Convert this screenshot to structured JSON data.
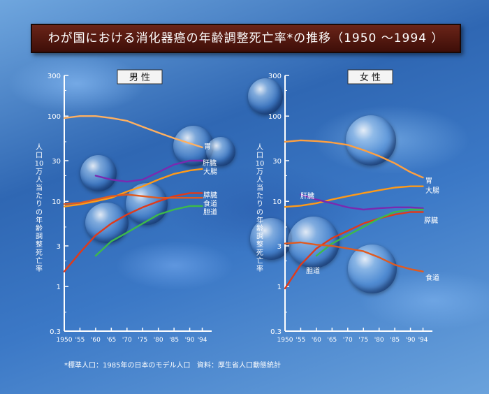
{
  "title": "わが国における消化器癌の年齢調整死亡率*の推移（1950 〜1994 ）",
  "footnote": "*標準人口：1985年の日本のモデル人口",
  "source": "資料：厚生省人口動態統計",
  "colors": {
    "male_stomach": "#ffb060",
    "liver": "#7a2ab0",
    "colon": "#ff9a18",
    "pancreas": "#e03a1a",
    "esophagus": "#e05a20",
    "biliary": "#3dba4a",
    "female_stomach": "#ffa040",
    "axis": "#ffffff"
  },
  "chart_data": [
    {
      "type": "line",
      "panel_label": "男 性",
      "ylabel": "人口10万人当たりの年齢調整死亡率",
      "y_scale": "log",
      "ylim": [
        0.3,
        300
      ],
      "yticks": [
        "300",
        "100",
        "30",
        "10",
        "3",
        "1",
        "0.3"
      ],
      "xlim": [
        1950,
        1997
      ],
      "xticks": [
        "1950",
        "'55",
        "'60",
        "'65",
        "'70",
        "'75",
        "'80",
        "'85",
        "'90",
        "'94"
      ],
      "grid": false,
      "series": [
        {
          "name": "胃",
          "color_key": "male_stomach",
          "x": [
            1950,
            1955,
            1960,
            1965,
            1970,
            1975,
            1980,
            1985,
            1990,
            1994
          ],
          "y": [
            95,
            100,
            100,
            95,
            88,
            75,
            64,
            55,
            48,
            43
          ]
        },
        {
          "name": "肝臓",
          "color_key": "liver",
          "x": [
            1960,
            1965,
            1970,
            1975,
            1980,
            1985,
            1990,
            1994
          ],
          "y": [
            20,
            18,
            17,
            18,
            22,
            27,
            30,
            30
          ]
        },
        {
          "name": "大腸",
          "color_key": "colon",
          "x": [
            1950,
            1955,
            1960,
            1965,
            1970,
            1975,
            1980,
            1985,
            1990,
            1994
          ],
          "y": [
            8.7,
            9.2,
            10,
            11,
            13,
            15,
            18,
            21,
            23,
            24
          ]
        },
        {
          "name": "膵臓",
          "color_key": "pancreas",
          "x": [
            1950,
            1955,
            1960,
            1965,
            1970,
            1975,
            1980,
            1985,
            1990,
            1994
          ],
          "y": [
            1.5,
            2.5,
            4,
            5.5,
            7,
            8.5,
            10,
            11.5,
            12.5,
            12.5
          ]
        },
        {
          "name": "食道",
          "color_key": "esophagus",
          "x": [
            1950,
            1955,
            1960,
            1965,
            1970,
            1975,
            1980,
            1985,
            1990,
            1994
          ],
          "y": [
            9.3,
            9.6,
            10.5,
            11.5,
            12,
            11.5,
            11,
            11,
            11,
            11
          ]
        },
        {
          "name": "胆道",
          "color_key": "biliary",
          "x": [
            1960,
            1965,
            1970,
            1975,
            1980,
            1985,
            1990,
            1994
          ],
          "y": [
            2.3,
            3.4,
            4.3,
            5.5,
            7,
            8,
            8.8,
            8.8
          ]
        }
      ]
    },
    {
      "type": "line",
      "panel_label": "女 性",
      "ylabel": "人口10万人当たりの年齢調整死亡率",
      "y_scale": "log",
      "ylim": [
        0.3,
        300
      ],
      "yticks": [
        "300",
        "100",
        "30",
        "10",
        "3",
        "1",
        "0.3"
      ],
      "xlim": [
        1950,
        1997
      ],
      "xticks": [
        "1950",
        "'55",
        "'60",
        "'65",
        "'70",
        "'75",
        "'80",
        "'85",
        "'90",
        "'94"
      ],
      "grid": false,
      "series": [
        {
          "name": "胃",
          "color_key": "female_stomach",
          "x": [
            1950,
            1955,
            1960,
            1965,
            1970,
            1975,
            1980,
            1985,
            1990,
            1994
          ],
          "y": [
            50,
            52,
            51,
            49,
            46,
            40,
            34,
            28,
            22,
            19
          ]
        },
        {
          "name": "大腸",
          "color_key": "colon",
          "x": [
            1950,
            1955,
            1960,
            1965,
            1970,
            1975,
            1980,
            1985,
            1990,
            1994
          ],
          "y": [
            8.6,
            8.9,
            9.5,
            10.5,
            11.5,
            12.5,
            13.5,
            14.5,
            15,
            15
          ]
        },
        {
          "name": "肝臓",
          "color_key": "liver",
          "x": [
            1955,
            1960,
            1965,
            1970,
            1975,
            1980,
            1985,
            1990,
            1994
          ],
          "y": [
            12,
            10.5,
            9.5,
            8.5,
            8,
            8.3,
            8.5,
            8.5,
            8.3
          ]
        },
        {
          "name": "膵臓",
          "color_key": "pancreas",
          "x": [
            1950,
            1955,
            1960,
            1965,
            1970,
            1975,
            1980,
            1985,
            1990,
            1994
          ],
          "y": [
            0.95,
            1.8,
            2.8,
            3.7,
            4.5,
            5.5,
            6.3,
            7,
            7.5,
            7.5
          ]
        },
        {
          "name": "胆道",
          "color_key": "biliary",
          "x": [
            1960,
            1965,
            1970,
            1975,
            1980,
            1985,
            1990,
            1994
          ],
          "y": [
            2.3,
            3.2,
            4,
            5,
            6.3,
            7.5,
            8,
            8
          ]
        },
        {
          "name": "食道",
          "color_key": "esophagus",
          "x": [
            1950,
            1955,
            1960,
            1965,
            1970,
            1975,
            1980,
            1985,
            1990,
            1994
          ],
          "y": [
            3.2,
            3.3,
            3.1,
            3,
            2.8,
            2.6,
            2.2,
            1.8,
            1.6,
            1.5
          ]
        }
      ]
    }
  ]
}
